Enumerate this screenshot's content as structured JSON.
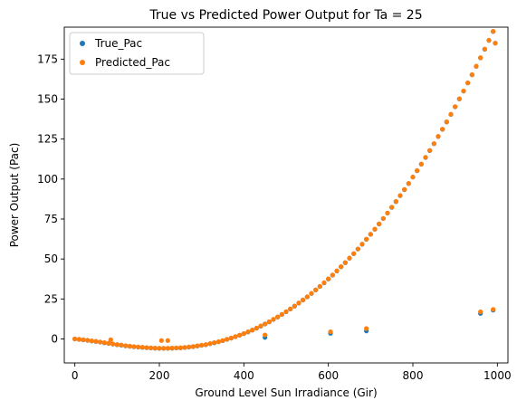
{
  "chart_data": {
    "type": "scatter",
    "title": "True vs Predicted Power Output for Ta = 25",
    "xlabel": "Ground Level Sun Irradiance (Gir)",
    "ylabel": "Power Output (Pac)",
    "xlim": [
      -25,
      1025
    ],
    "ylim": [
      -15,
      195
    ],
    "xticks": [
      0,
      200,
      400,
      600,
      800,
      1000
    ],
    "yticks": [
      0,
      25,
      50,
      75,
      100,
      125,
      150,
      175
    ],
    "grid": false,
    "legend_position": "top-left",
    "series": [
      {
        "name": "True_Pac",
        "color": "#1f77b4",
        "x": [
          0,
          10,
          20,
          30,
          40,
          50,
          60,
          70,
          80,
          90,
          100,
          110,
          120,
          130,
          140,
          150,
          160,
          170,
          180,
          190,
          200,
          210,
          220,
          230,
          240,
          250,
          260,
          270,
          280,
          290,
          300,
          310,
          320,
          330,
          340,
          350,
          360,
          370,
          380,
          390,
          400,
          410,
          420,
          430,
          440,
          450,
          460,
          470,
          480,
          490,
          500,
          510,
          520,
          530,
          540,
          550,
          560,
          570,
          580,
          590,
          600,
          610,
          620,
          630,
          640,
          650,
          660,
          670,
          680,
          690,
          700,
          710,
          720,
          730,
          740,
          750,
          760,
          770,
          780,
          790,
          800,
          810,
          820,
          830,
          840,
          850,
          860,
          870,
          880,
          890,
          900,
          910,
          920,
          930,
          940,
          950,
          960,
          970,
          980,
          990,
          995,
          450,
          605,
          690,
          960,
          990
        ],
        "y": [
          0,
          -0.3,
          -0.6,
          -0.9,
          -1.3,
          -1.6,
          -2.0,
          -2.4,
          -2.8,
          -3.2,
          -3.6,
          -3.9,
          -4.3,
          -4.6,
          -4.9,
          -5.1,
          -5.3,
          -5.5,
          -5.7,
          -5.8,
          -5.9,
          -5.9,
          -5.9,
          -5.8,
          -5.7,
          -5.6,
          -5.4,
          -5.1,
          -4.8,
          -4.4,
          -4.0,
          -3.6,
          -3.0,
          -2.4,
          -1.8,
          -1.1,
          -0.3,
          0.5,
          1.4,
          2.3,
          3.3,
          4.4,
          5.5,
          6.7,
          8.0,
          9.3,
          10.7,
          12.2,
          13.7,
          15.3,
          17.0,
          18.7,
          20.5,
          22.4,
          24.3,
          26.3,
          28.4,
          30.6,
          32.8,
          35.1,
          37.5,
          39.9,
          42.5,
          45.1,
          47.7,
          50.5,
          53.3,
          56.2,
          59.2,
          62.3,
          65.4,
          68.6,
          71.9,
          75.3,
          78.7,
          82.3,
          85.9,
          89.6,
          93.4,
          97.2,
          101.2,
          105.2,
          109.3,
          113.5,
          117.8,
          122.1,
          126.6,
          131.1,
          135.7,
          140.4,
          145.2,
          150.1,
          155.0,
          160.1,
          165.2,
          170.5,
          175.8,
          181.2,
          186.7,
          192.3,
          185.0,
          1.0,
          3.5,
          5.0,
          16.0,
          18.0
        ]
      },
      {
        "name": "Predicted_Pac",
        "color": "#ff7f0e",
        "x": [
          0,
          10,
          20,
          30,
          40,
          50,
          60,
          70,
          80,
          90,
          100,
          110,
          120,
          130,
          140,
          150,
          160,
          170,
          180,
          190,
          200,
          210,
          220,
          230,
          240,
          250,
          260,
          270,
          280,
          290,
          300,
          310,
          320,
          330,
          340,
          350,
          360,
          370,
          380,
          390,
          400,
          410,
          420,
          430,
          440,
          450,
          460,
          470,
          480,
          490,
          500,
          510,
          520,
          530,
          540,
          550,
          560,
          570,
          580,
          590,
          600,
          610,
          620,
          630,
          640,
          650,
          660,
          670,
          680,
          690,
          700,
          710,
          720,
          730,
          740,
          750,
          760,
          770,
          780,
          790,
          800,
          810,
          820,
          830,
          840,
          850,
          860,
          870,
          880,
          890,
          900,
          910,
          920,
          930,
          940,
          950,
          960,
          970,
          980,
          990,
          995,
          85,
          205,
          220,
          450,
          605,
          690,
          960,
          990
        ],
        "y": [
          0,
          -0.2,
          -0.5,
          -0.8,
          -1.2,
          -1.5,
          -1.9,
          -2.3,
          -2.7,
          -3.1,
          -3.5,
          -3.8,
          -4.2,
          -4.5,
          -4.8,
          -5.0,
          -5.2,
          -5.4,
          -5.6,
          -5.7,
          -5.8,
          -5.8,
          -5.8,
          -5.7,
          -5.6,
          -5.5,
          -5.3,
          -5.0,
          -4.7,
          -4.3,
          -3.9,
          -3.5,
          -2.9,
          -2.3,
          -1.7,
          -1.0,
          -0.2,
          0.6,
          1.5,
          2.4,
          3.4,
          4.5,
          5.6,
          6.8,
          8.1,
          9.4,
          10.8,
          12.3,
          13.8,
          15.4,
          17.1,
          18.8,
          20.6,
          22.5,
          24.4,
          26.4,
          28.5,
          30.7,
          32.9,
          35.2,
          37.6,
          40.0,
          42.6,
          45.2,
          47.8,
          50.6,
          53.4,
          56.3,
          59.3,
          62.4,
          65.5,
          68.7,
          72.0,
          75.4,
          78.8,
          82.4,
          86.0,
          89.7,
          93.5,
          97.3,
          101.3,
          105.3,
          109.4,
          113.6,
          117.9,
          122.2,
          126.7,
          131.2,
          135.8,
          140.5,
          145.3,
          150.2,
          155.1,
          160.2,
          165.3,
          170.6,
          175.9,
          181.3,
          186.8,
          192.4,
          185.0,
          -0.5,
          -1.0,
          -1.0,
          2.5,
          4.5,
          6.5,
          17.0,
          18.5
        ]
      }
    ]
  }
}
